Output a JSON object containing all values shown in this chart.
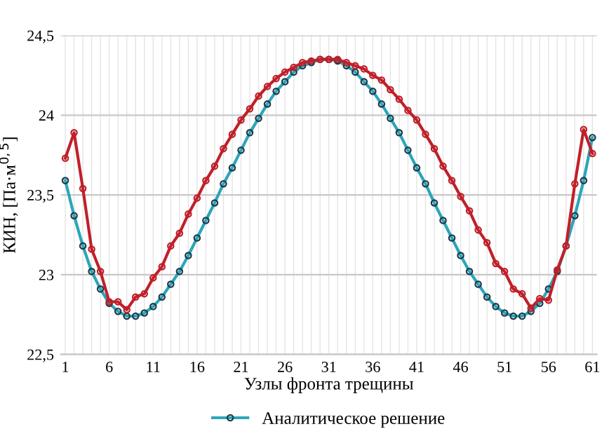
{
  "chart_data": {
    "type": "line",
    "xlabel": "Узлы фронта трещины",
    "ylabel": "КИН, [Па·м$^{0,5}$]",
    "categories": [
      "1",
      null,
      null,
      null,
      null,
      "6",
      null,
      null,
      null,
      null,
      "11",
      null,
      null,
      null,
      null,
      "16",
      null,
      null,
      null,
      null,
      "21",
      null,
      null,
      null,
      null,
      "26",
      null,
      null,
      null,
      null,
      "31",
      null,
      null,
      null,
      null,
      "36",
      null,
      null,
      null,
      null,
      "41",
      null,
      null,
      null,
      null,
      "46",
      null,
      null,
      null,
      null,
      "51",
      null,
      null,
      null,
      null,
      "56",
      null,
      null,
      null,
      null,
      "61"
    ],
    "series": [
      {
        "name": "Аналитическое решение",
        "color": "#2ba6b9",
        "marker": "circle",
        "values": [
          23.59,
          23.37,
          23.18,
          23.02,
          22.91,
          22.82,
          22.77,
          22.74,
          22.74,
          22.76,
          22.8,
          22.86,
          22.94,
          23.02,
          23.12,
          23.23,
          23.34,
          23.45,
          23.57,
          23.67,
          23.78,
          23.89,
          23.98,
          24.07,
          24.15,
          24.21,
          24.27,
          24.31,
          24.33,
          24.35,
          24.35,
          24.34,
          24.31,
          24.27,
          24.21,
          24.15,
          24.07,
          23.98,
          23.89,
          23.78,
          23.67,
          23.57,
          23.45,
          23.34,
          23.23,
          23.12,
          23.02,
          22.94,
          22.86,
          22.8,
          22.76,
          22.74,
          22.74,
          22.77,
          22.82,
          22.91,
          23.02,
          23.18,
          23.37,
          23.59,
          23.86
        ]
      },
      {
        "color": "#c0202a",
        "marker": "circle",
        "values": [
          23.73,
          23.89,
          23.54,
          23.16,
          23.02,
          22.83,
          22.83,
          22.78,
          22.86,
          22.88,
          22.98,
          23.05,
          23.18,
          23.26,
          23.38,
          23.48,
          23.59,
          23.68,
          23.79,
          23.88,
          23.97,
          24.04,
          24.12,
          24.18,
          24.23,
          24.27,
          24.3,
          24.33,
          24.34,
          24.35,
          24.35,
          24.35,
          24.33,
          24.31,
          24.29,
          24.25,
          24.22,
          24.16,
          24.1,
          24.03,
          23.97,
          23.88,
          23.79,
          23.68,
          23.59,
          23.49,
          23.4,
          23.28,
          23.2,
          23.07,
          23.02,
          22.91,
          22.88,
          22.79,
          22.85,
          22.84,
          23.03,
          23.18,
          23.57,
          23.91,
          23.76
        ]
      }
    ],
    "ylim": [
      22.5,
      24.5
    ],
    "yticks": [
      {
        "value": 22.5,
        "label": "22,5"
      },
      23,
      {
        "value": 23.5,
        "label": "23,5"
      },
      24,
      {
        "value": 24.5,
        "label": "24,5"
      }
    ],
    "grid": true,
    "legend": "bottom"
  }
}
